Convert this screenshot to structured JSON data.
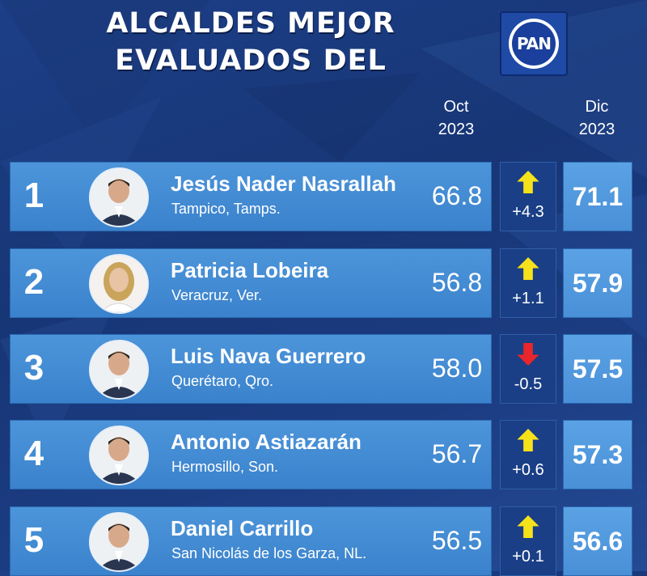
{
  "title": {
    "line1": "ALCALDES MEJOR",
    "line2": "EVALUADOS DEL"
  },
  "logo": {
    "text": "PAN",
    "brand_color": "#1a3f9c"
  },
  "columns": {
    "oct": {
      "month": "Oct",
      "year": "2023"
    },
    "dic": {
      "month": "Dic",
      "year": "2023"
    }
  },
  "colors": {
    "up_arrow": "#f6e21a",
    "down_arrow": "#e8262b",
    "bar": "#4d95da",
    "background": "#1b3b80"
  },
  "mayors": [
    {
      "rank": "1",
      "name": "Jesús Nader Nasrallah",
      "city": "Tampico, Tamps.",
      "oct": "66.8",
      "direction": "up",
      "delta": "+4.3",
      "dic": "71.1",
      "photo_icon": "man-portrait-icon"
    },
    {
      "rank": "2",
      "name": "Patricia Lobeira",
      "city": "Veracruz, Ver.",
      "oct": "56.8",
      "direction": "up",
      "delta": "+1.1",
      "dic": "57.9",
      "photo_icon": "woman-portrait-icon"
    },
    {
      "rank": "3",
      "name": "Luis Nava Guerrero",
      "city": "Querétaro, Qro.",
      "oct": "58.0",
      "direction": "down",
      "delta": "-0.5",
      "dic": "57.5",
      "photo_icon": "man-portrait-icon"
    },
    {
      "rank": "4",
      "name": "Antonio Astiazarán",
      "city": "Hermosillo, Son.",
      "oct": "56.7",
      "direction": "up",
      "delta": "+0.6",
      "dic": "57.3",
      "photo_icon": "man-portrait-icon"
    },
    {
      "rank": "5",
      "name": "Daniel Carrillo",
      "city": "San Nicolás de los Garza, NL.",
      "oct": "56.5",
      "direction": "up",
      "delta": "+0.1",
      "dic": "56.6",
      "photo_icon": "man-portrait-icon"
    }
  ]
}
